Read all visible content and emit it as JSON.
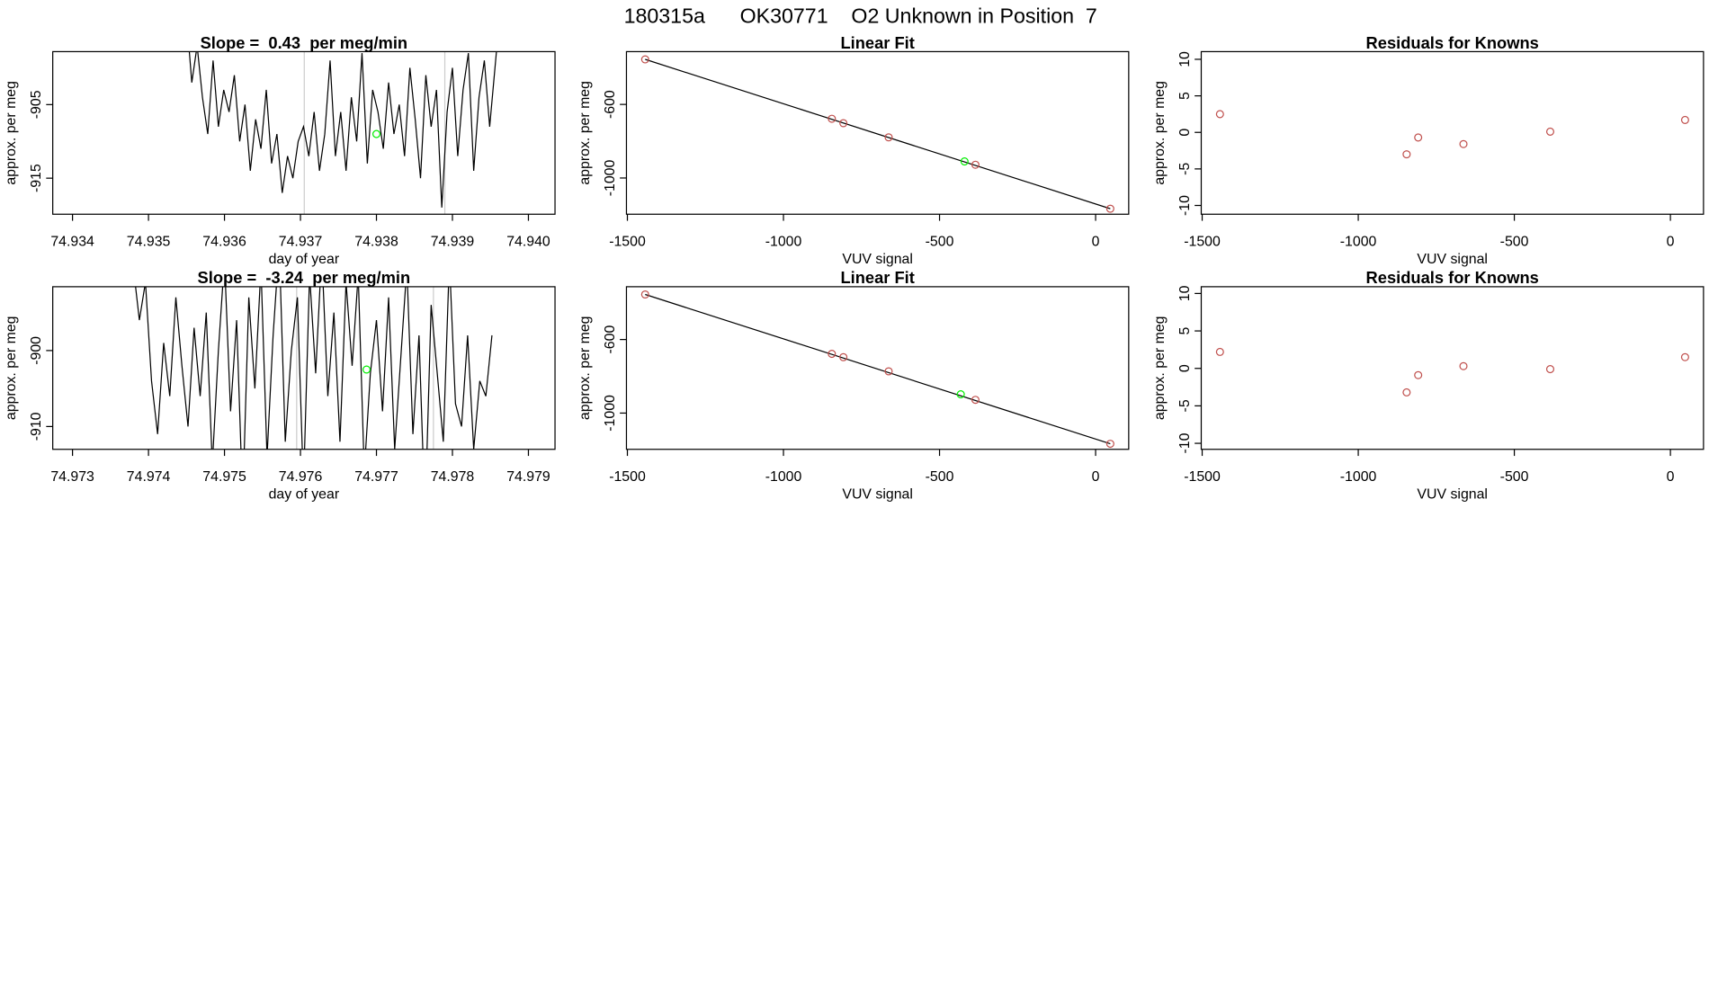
{
  "title": "180315a      OK30771    O2 Unknown in Position  7",
  "chart_data": [
    {
      "type": "line",
      "title": "Slope =  0.43  per meg/min",
      "xlabel": "day of year",
      "ylabel": "approx. per meg",
      "x": [
        74.9355,
        74.93557,
        74.93564,
        74.93571,
        74.93578,
        74.93585,
        74.93592,
        74.93599,
        74.93606,
        74.93613,
        74.9362,
        74.93627,
        74.93634,
        74.93641,
        74.93648,
        74.93655,
        74.93662,
        74.93669,
        74.93676,
        74.93683,
        74.9369,
        74.93697,
        74.93704,
        74.93711,
        74.93718,
        74.93725,
        74.93732,
        74.93739,
        74.93746,
        74.93753,
        74.9376,
        74.93767,
        74.93774,
        74.93781,
        74.93788,
        74.93795,
        74.93802,
        74.93809,
        74.93816,
        74.93823,
        74.9383,
        74.93837,
        74.93844,
        74.93851,
        74.93858,
        74.93865,
        74.93872,
        74.93879,
        74.93886,
        74.93893,
        74.939,
        74.93907,
        74.93914,
        74.93921,
        74.93928,
        74.93935,
        74.93942,
        74.93949,
        74.93956,
        74.93963
      ],
      "values": [
        -893,
        -902,
        -897,
        -904,
        -909,
        -899,
        -908,
        -903,
        -906,
        -901,
        -910,
        -905,
        -914,
        -907,
        -911,
        -903,
        -913,
        -909,
        -917,
        -912,
        -915,
        -910,
        -908,
        -912,
        -906,
        -914,
        -909,
        -899,
        -912,
        -906,
        -914,
        -904,
        -910,
        -898,
        -913,
        -903,
        -906,
        -911,
        -902,
        -909,
        -905,
        -912,
        -900,
        -907,
        -915,
        -901,
        -908,
        -903,
        -919,
        -906,
        -900,
        -912,
        -903,
        -898,
        -914,
        -904,
        -899,
        -908,
        -900,
        -892
      ],
      "color": "#000000",
      "xlim": [
        74.93374,
        74.94035
      ],
      "xticks": [
        74.934,
        74.935,
        74.936,
        74.937,
        74.938,
        74.939,
        {
          "value": 74.94,
          "label": "74.940"
        }
      ],
      "ylim": [
        -919.9,
        -897.8
      ],
      "yticks": [
        -905,
        -915
      ],
      "vlines": [
        74.93705,
        74.9389
      ],
      "vline_color": "#cccccc",
      "highlight": {
        "x": 74.938,
        "y": -909,
        "color": "#00ee00"
      }
    },
    {
      "type": "scatter",
      "title": "Linear Fit",
      "xlabel": "VUV signal",
      "ylabel": "approx. per meg",
      "x": [
        -1443,
        -845,
        -808,
        -663,
        -385,
        47
      ],
      "values": [
        -355,
        -678,
        -702,
        -779,
        -928,
        -1167
      ],
      "color": "#c0504d",
      "xlim": [
        -1503,
        106
      ],
      "xticks": [
        -1500,
        -1000,
        -500,
        0
      ],
      "ylim": [
        -1197,
        -313
      ],
      "yticks": [
        -600,
        -1000
      ],
      "fit": {
        "x": [
          -1443,
          47
        ],
        "y": [
          -355,
          -1167
        ],
        "color": "#000000"
      },
      "highlight": {
        "x": -420,
        "y": -910,
        "color": "#00ee00"
      }
    },
    {
      "type": "scatter",
      "title": "Residuals for Knowns",
      "ylabel": "approx. per meg",
      "xlabel": "VUV signal",
      "x": [
        -1443,
        -845,
        -808,
        -663,
        -385,
        47
      ],
      "values": [
        2.5,
        -3.0,
        -0.7,
        -1.6,
        0.1,
        1.7
      ],
      "color": "#c0504d",
      "xlim": [
        -1503,
        106
      ],
      "xticks": [
        -1500,
        -1000,
        -500,
        0
      ],
      "ylim": [
        -11.2,
        11.05
      ],
      "yticks": [
        -10,
        -5,
        0,
        5,
        10
      ]
    },
    {
      "type": "line",
      "title": "Slope =  -3.24  per meg/min",
      "xlabel": "day of year",
      "ylabel": "approx. per meg",
      "x": [
        74.9738,
        74.97388,
        74.97396,
        74.97404,
        74.97412,
        74.9742,
        74.97428,
        74.97436,
        74.97444,
        74.97452,
        74.9746,
        74.97468,
        74.97476,
        74.97484,
        74.97492,
        74.975,
        74.97508,
        74.97516,
        74.97524,
        74.97532,
        74.9754,
        74.97548,
        74.97556,
        74.97564,
        74.97572,
        74.9758,
        74.97588,
        74.97596,
        74.97604,
        74.97612,
        74.9762,
        74.97628,
        74.97636,
        74.97644,
        74.97652,
        74.9766,
        74.97668,
        74.97676,
        74.97684,
        74.97692,
        74.977,
        74.97708,
        74.97716,
        74.97724,
        74.97732,
        74.9774,
        74.97748,
        74.97756,
        74.97764,
        74.97772,
        74.9778,
        74.97788,
        74.97796,
        74.97804,
        74.97812,
        74.9782,
        74.97828,
        74.97836,
        74.97844,
        74.97852
      ],
      "values": [
        -889,
        -896,
        -891,
        -904,
        -911,
        -899,
        -906,
        -893,
        -902,
        -910,
        -897,
        -906,
        -895,
        -915,
        -900,
        -888,
        -908,
        -896,
        -920,
        -893,
        -905,
        -889,
        -914,
        -898,
        -886,
        -912,
        -900,
        -893,
        -918,
        -890,
        -903,
        -887,
        -906,
        -895,
        -912,
        -891,
        -902,
        -890,
        -916,
        -903,
        -896,
        -908,
        -893,
        -913,
        -901,
        -889,
        -911,
        -898,
        -922,
        -894,
        -903,
        -912,
        -888,
        -907,
        -910,
        -898,
        -913,
        -904,
        -906,
        -898
      ],
      "color": "#000000",
      "xlim": [
        74.97274,
        74.97935
      ],
      "xticks": [
        74.973,
        74.974,
        74.975,
        74.976,
        74.977,
        74.978,
        74.979
      ],
      "ylim": [
        -913.0,
        -891.6
      ],
      "yticks": [
        -900,
        -910
      ],
      "vlines": [
        74.97595,
        74.97775
      ],
      "vline_color": "#cccccc",
      "highlight": {
        "x": 74.97687,
        "y": -902.5,
        "color": "#00ee00"
      }
    },
    {
      "type": "scatter",
      "title": "Linear Fit",
      "xlabel": "VUV signal",
      "ylabel": "approx. per meg",
      "x": [
        -1443,
        -845,
        -808,
        -663,
        -385,
        47
      ],
      "values": [
        -355,
        -678,
        -696,
        -773,
        -928,
        -1167
      ],
      "color": "#c0504d",
      "xlim": [
        -1503,
        106
      ],
      "xticks": [
        -1500,
        -1000,
        -500,
        0
      ],
      "ylim": [
        -1197,
        -313
      ],
      "yticks": [
        -600,
        -1000
      ],
      "fit": {
        "x": [
          -1443,
          47
        ],
        "y": [
          -355,
          -1167
        ],
        "color": "#000000"
      },
      "highlight": {
        "x": -432,
        "y": -898,
        "color": "#00ee00"
      }
    },
    {
      "type": "scatter",
      "title": "Residuals for Knowns",
      "ylabel": "approx. per meg",
      "xlabel": "VUV signal",
      "x": [
        -1443,
        -845,
        -808,
        -663,
        -385,
        47
      ],
      "values": [
        2.2,
        -3.2,
        -0.9,
        0.3,
        -0.1,
        1.5
      ],
      "color": "#c0504d",
      "xlim": [
        -1503,
        106
      ],
      "xticks": [
        -1500,
        -1000,
        -500,
        0
      ],
      "ylim": [
        -10.8,
        10.9
      ],
      "yticks": [
        -10,
        -5,
        0,
        5,
        10
      ]
    }
  ]
}
